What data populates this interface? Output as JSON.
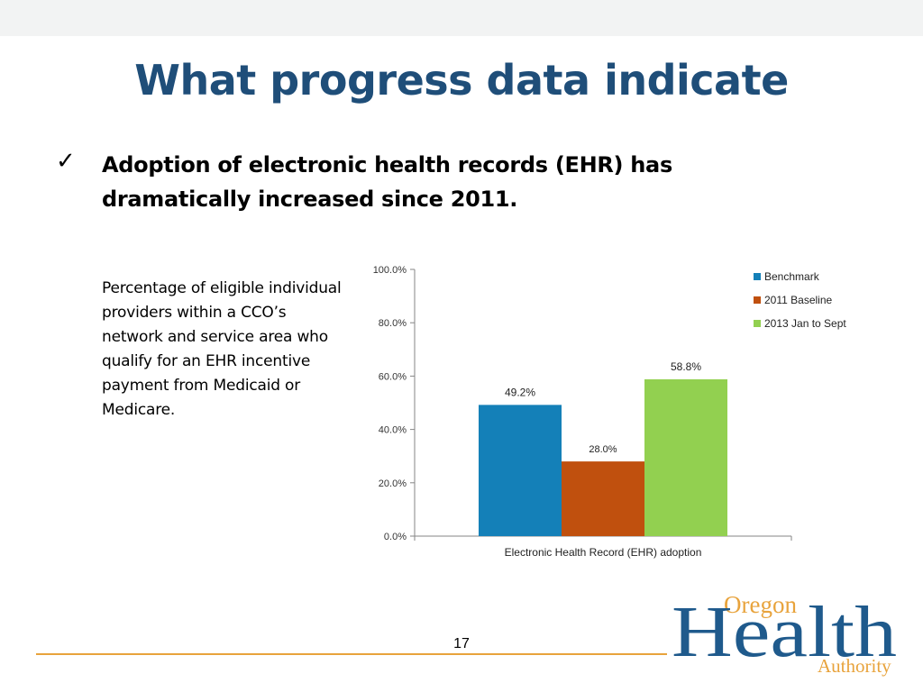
{
  "slide": {
    "title": "What progress data indicate",
    "bullet": "Adoption of electronic health records (EHR) has dramatically increased since 2011.",
    "description": "Percentage of eligible individual providers within a CCO’s network and service area who qualify for an EHR incentive payment from Medicaid or Medicare.",
    "page_number": "17",
    "icons": {
      "bullet": "checkmark-icon"
    }
  },
  "logo": {
    "line1": "Oregon",
    "line2": "Health",
    "line3": "Authority"
  },
  "chart_data": {
    "type": "bar",
    "categories": [
      "Electronic Health Record (EHR) adoption"
    ],
    "series": [
      {
        "name": "Benchmark",
        "values": [
          49.2
        ],
        "label": "49.2%",
        "color": "#1480b8"
      },
      {
        "name": "2011 Baseline",
        "values": [
          28.0
        ],
        "label": "28.0%",
        "color": "#c0500e"
      },
      {
        "name": "2013 Jan to Sept",
        "values": [
          58.8
        ],
        "label": "58.8%",
        "color": "#92d050"
      }
    ],
    "yticks": [
      "0.0%",
      "20.0%",
      "40.0%",
      "60.0%",
      "80.0%",
      "100.0%"
    ],
    "ylim": [
      0,
      100
    ],
    "xlabel": "Electronic Health Record (EHR) adoption",
    "legend_position": "top-right",
    "grid": false
  }
}
